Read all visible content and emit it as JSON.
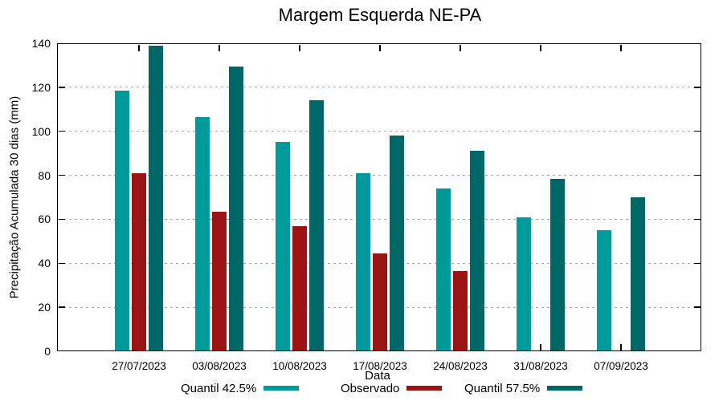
{
  "chart_data": {
    "type": "bar",
    "title": "Margem Esquerda NE-PA",
    "xlabel": "Data",
    "ylabel": "Precipitação Acumulada 30 dias (mm)",
    "ylim": [
      0,
      140
    ],
    "yticks": [
      0,
      20,
      40,
      60,
      80,
      100,
      120,
      140
    ],
    "grid": "horizontal dotted gridlines at y=20..120",
    "grid_color": "#a9a9a9",
    "legend_position": "bottom",
    "categories": [
      "27/07/2023",
      "03/08/2023",
      "10/08/2023",
      "17/08/2023",
      "24/08/2023",
      "31/08/2023",
      "07/09/2023"
    ],
    "series": [
      {
        "name": "Quantil 42.5%",
        "color": "#009A9A",
        "values": [
          118.5,
          106.5,
          95,
          81,
          74,
          61,
          55
        ]
      },
      {
        "name": "Observado",
        "color": "#9A1414",
        "values": [
          81,
          63.5,
          57,
          44.5,
          36.5,
          null,
          null
        ]
      },
      {
        "name": "Quantil 57.5%",
        "color": "#006767",
        "values": [
          139,
          129.5,
          114,
          98,
          91,
          78.5,
          70
        ]
      }
    ]
  }
}
